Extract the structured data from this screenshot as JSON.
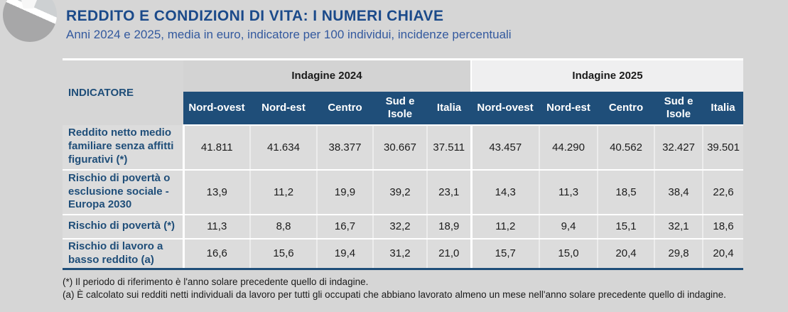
{
  "header": {
    "title": "REDDITO E CONDIZIONI DI VITA: I NUMERI CHIAVE",
    "subtitle": "Anni 2024 e 2025, media in euro, indicatore per 100 individui, incidenze percentuali"
  },
  "table": {
    "indicator_header": "INDICATORE",
    "groups": [
      {
        "label": "Indagine 2024",
        "columns": [
          "Nord-ovest",
          "Nord-est",
          "Centro",
          "Sud e Isole",
          "Italia"
        ]
      },
      {
        "label": "Indagine 2025",
        "columns": [
          "Nord-ovest",
          "Nord-est",
          "Centro",
          "Sud e Isole",
          "Italia"
        ]
      }
    ],
    "rows": [
      {
        "indicator": "Reddito netto medio familiare senza affitti figurativi (*)",
        "values_2024": [
          "41.811",
          "41.634",
          "38.377",
          "30.667",
          "37.511"
        ],
        "values_2025": [
          "43.457",
          "44.290",
          "40.562",
          "32.427",
          "39.501"
        ]
      },
      {
        "indicator": "Rischio di povertà o esclusione sociale - Europa 2030",
        "values_2024": [
          "13,9",
          "11,2",
          "19,9",
          "39,2",
          "23,1"
        ],
        "values_2025": [
          "14,3",
          "11,3",
          "18,5",
          "38,4",
          "22,6"
        ]
      },
      {
        "indicator": "Rischio di povertà (*)",
        "values_2024": [
          "11,3",
          "8,8",
          "16,7",
          "32,2",
          "18,9"
        ],
        "values_2025": [
          "11,2",
          "9,4",
          "15,1",
          "32,1",
          "18,6"
        ]
      },
      {
        "indicator": "Rischio di lavoro a basso reddito (a)",
        "values_2024": [
          "16,6",
          "15,6",
          "19,4",
          "31,2",
          "21,0"
        ],
        "values_2025": [
          "15,7",
          "15,0",
          "20,4",
          "29,8",
          "20,4"
        ]
      }
    ]
  },
  "footnotes": [
    "(*) Il periodo di riferimento è l'anno solare precedente quello di indagine.",
    "(a) È calcolato sui redditi netti individuali da lavoro per tutti gli occupati che abbiano lavorato almeno un mese nell'anno solare precedente quello di indagine."
  ],
  "colors": {
    "header_band": "#1f4e79",
    "title_text": "#1b4a8a",
    "subtitle_text": "#33599e",
    "strip_2024_bg": "#d3d3d3",
    "strip_2025_bg": "#efeff0",
    "cell_bg": "#dcdcdc",
    "page_bg": "#d6d6d6"
  }
}
